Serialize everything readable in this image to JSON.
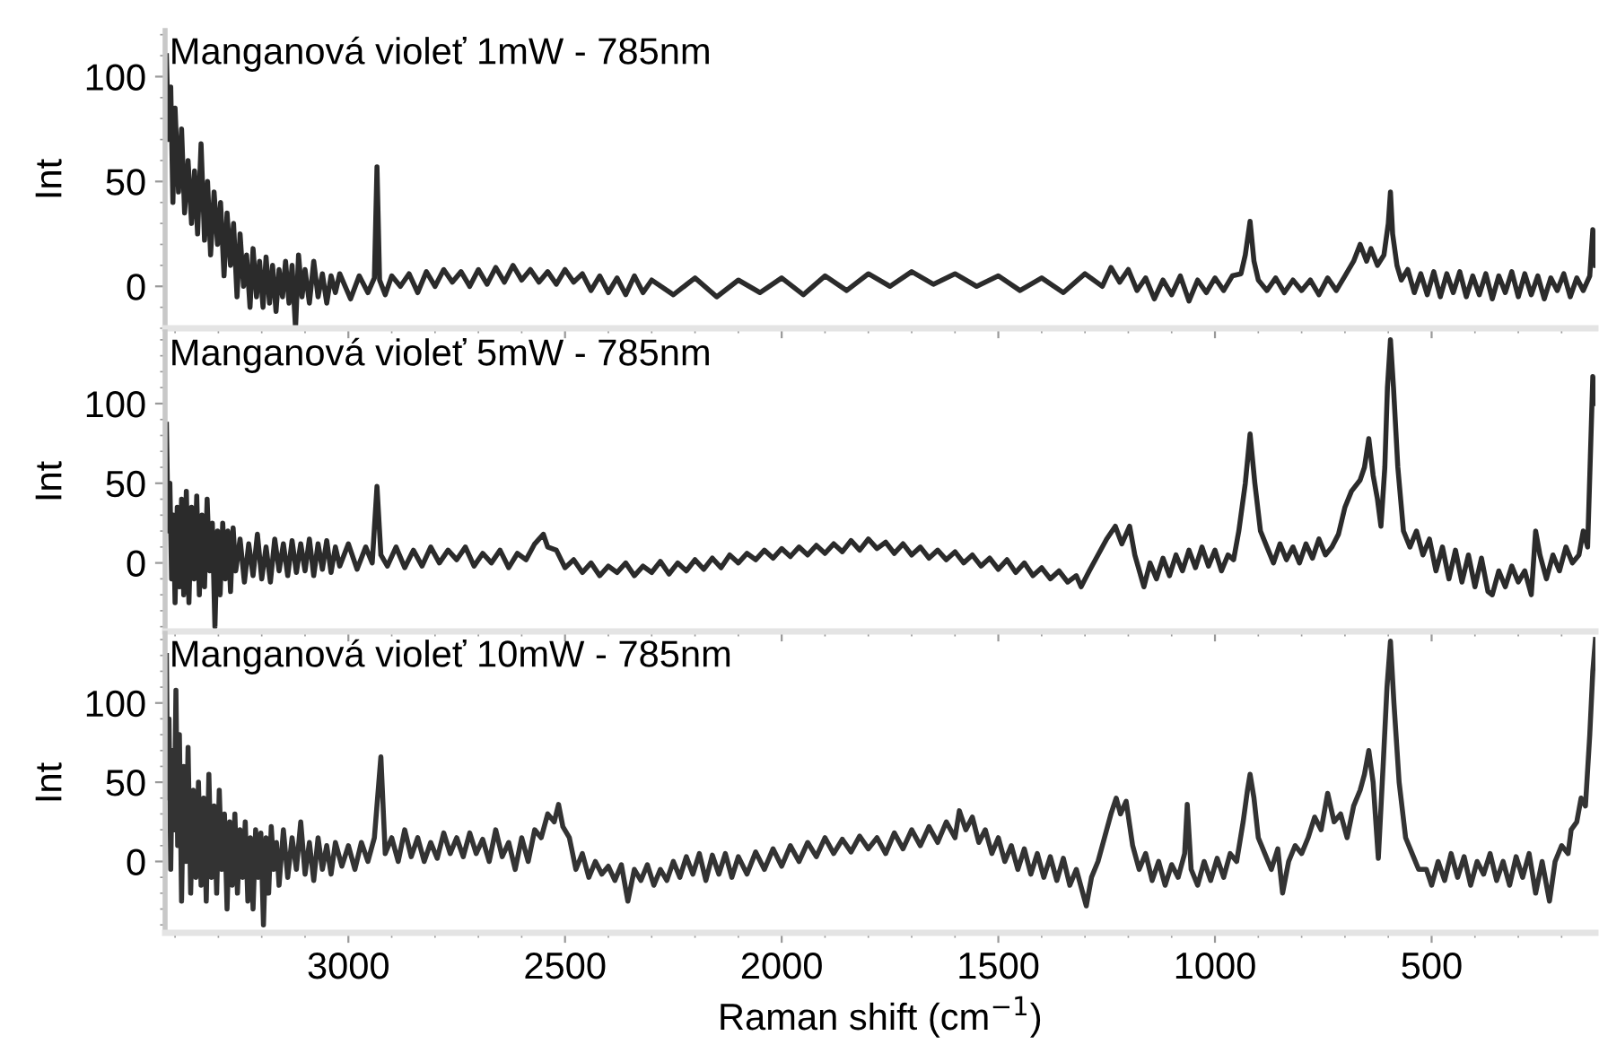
{
  "chart_data": [
    {
      "type": "line",
      "title": "Manganová violeť 1mW - 785nm",
      "ylabel": "Int",
      "xlim": [
        3423,
        122
      ],
      "ylim": [
        -20,
        122
      ],
      "xticks": [
        3000,
        2500,
        2000,
        1500,
        1000,
        500
      ],
      "yticks": [
        0,
        50,
        100
      ],
      "tick_labels": "y",
      "grid": false,
      "series": [
        {
          "color": "#2b2b2b",
          "x": [
            3420,
            3415,
            3410,
            3405,
            3400,
            3392,
            3385,
            3378,
            3370,
            3362,
            3355,
            3348,
            3340,
            3332,
            3325,
            3318,
            3310,
            3302,
            3295,
            3287,
            3280,
            3272,
            3265,
            3257,
            3250,
            3242,
            3235,
            3227,
            3220,
            3212,
            3205,
            3197,
            3190,
            3182,
            3175,
            3167,
            3160,
            3152,
            3145,
            3137,
            3130,
            3122,
            3115,
            3107,
            3100,
            3090,
            3080,
            3070,
            3060,
            3050,
            3040,
            3030,
            3020,
            2995,
            2975,
            2955,
            2940,
            2934,
            2928,
            2915,
            2900,
            2880,
            2860,
            2840,
            2820,
            2800,
            2780,
            2760,
            2740,
            2720,
            2700,
            2680,
            2660,
            2640,
            2620,
            2600,
            2580,
            2560,
            2540,
            2520,
            2500,
            2480,
            2460,
            2440,
            2420,
            2400,
            2380,
            2360,
            2340,
            2320,
            2300,
            2250,
            2200,
            2150,
            2100,
            2050,
            2000,
            1950,
            1900,
            1850,
            1800,
            1750,
            1700,
            1650,
            1600,
            1550,
            1500,
            1450,
            1400,
            1350,
            1300,
            1260,
            1240,
            1220,
            1200,
            1180,
            1160,
            1140,
            1120,
            1100,
            1080,
            1060,
            1040,
            1020,
            1000,
            980,
            960,
            940,
            930,
            919,
            910,
            900,
            880,
            860,
            840,
            820,
            800,
            780,
            760,
            740,
            720,
            700,
            680,
            665,
            650,
            640,
            625,
            610,
            600,
            595,
            590,
            580,
            570,
            555,
            540,
            525,
            510,
            495,
            480,
            465,
            450,
            435,
            420,
            405,
            390,
            375,
            360,
            345,
            330,
            315,
            300,
            285,
            270,
            255,
            240,
            225,
            210,
            195,
            180,
            165,
            150,
            135,
            128,
            122
          ],
          "values": [
            110,
            70,
            95,
            40,
            85,
            45,
            75,
            35,
            60,
            30,
            55,
            25,
            68,
            22,
            50,
            15,
            45,
            20,
            40,
            5,
            35,
            10,
            30,
            -5,
            25,
            0,
            15,
            -10,
            18,
            -5,
            12,
            -10,
            14,
            -8,
            10,
            -12,
            8,
            -5,
            12,
            -8,
            10,
            -20,
            15,
            -5,
            8,
            -8,
            12,
            -5,
            6,
            -8,
            5,
            -3,
            6,
            -6,
            5,
            -3,
            4,
            57,
            3,
            -4,
            5,
            0,
            6,
            -3,
            7,
            0,
            8,
            2,
            7,
            0,
            8,
            1,
            9,
            2,
            10,
            3,
            8,
            2,
            7,
            1,
            8,
            2,
            6,
            -2,
            5,
            -3,
            4,
            -4,
            5,
            -3,
            3,
            -4,
            4,
            -5,
            3,
            -3,
            4,
            -4,
            5,
            -2,
            6,
            0,
            7,
            1,
            6,
            0,
            5,
            -2,
            4,
            -3,
            6,
            0,
            9,
            2,
            8,
            -2,
            4,
            -6,
            3,
            -4,
            5,
            -7,
            3,
            -3,
            4,
            -2,
            5,
            6,
            15,
            31,
            12,
            3,
            -2,
            4,
            -3,
            3,
            -2,
            3,
            -4,
            4,
            -2,
            5,
            12,
            20,
            12,
            18,
            10,
            15,
            30,
            45,
            25,
            10,
            3,
            8,
            -3,
            6,
            -4,
            7,
            -5,
            6,
            -3,
            7,
            -5,
            5,
            -4,
            6,
            -6,
            5,
            -3,
            7,
            -5,
            6,
            -4,
            5,
            -6,
            4,
            -2,
            6,
            -5,
            4,
            -2,
            5,
            27,
            10
          ]
        }
      ]
    },
    {
      "type": "line",
      "title": "Manganová violeť 5mW - 785nm",
      "ylabel": "Int",
      "xlim": [
        3423,
        122
      ],
      "ylim": [
        -43,
        145
      ],
      "xticks": [
        3000,
        2500,
        2000,
        1500,
        1000,
        500
      ],
      "yticks": [
        0,
        50,
        100
      ],
      "tick_labels": "y",
      "grid": false,
      "series": [
        {
          "color": "#2b2b2b",
          "x": [
            3420,
            3416,
            3412,
            3408,
            3404,
            3400,
            3395,
            3390,
            3385,
            3380,
            3374,
            3368,
            3362,
            3356,
            3350,
            3344,
            3338,
            3332,
            3326,
            3320,
            3314,
            3308,
            3302,
            3296,
            3290,
            3284,
            3278,
            3272,
            3266,
            3260,
            3250,
            3240,
            3230,
            3220,
            3210,
            3200,
            3190,
            3180,
            3170,
            3160,
            3150,
            3140,
            3130,
            3120,
            3110,
            3100,
            3090,
            3080,
            3070,
            3060,
            3050,
            3040,
            3030,
            3020,
            3000,
            2980,
            2960,
            2945,
            2934,
            2925,
            2910,
            2890,
            2870,
            2850,
            2830,
            2810,
            2790,
            2770,
            2750,
            2730,
            2710,
            2690,
            2670,
            2650,
            2630,
            2610,
            2590,
            2570,
            2550,
            2540,
            2520,
            2500,
            2480,
            2460,
            2440,
            2420,
            2400,
            2380,
            2360,
            2340,
            2320,
            2300,
            2280,
            2260,
            2240,
            2220,
            2200,
            2180,
            2160,
            2140,
            2120,
            2100,
            2080,
            2060,
            2040,
            2020,
            2000,
            1980,
            1960,
            1940,
            1920,
            1900,
            1880,
            1860,
            1840,
            1820,
            1800,
            1780,
            1760,
            1740,
            1720,
            1700,
            1680,
            1660,
            1640,
            1620,
            1600,
            1580,
            1560,
            1540,
            1520,
            1500,
            1480,
            1460,
            1440,
            1420,
            1400,
            1380,
            1360,
            1340,
            1320,
            1309,
            1290,
            1270,
            1250,
            1230,
            1215,
            1197,
            1185,
            1164,
            1150,
            1135,
            1120,
            1105,
            1090,
            1075,
            1060,
            1045,
            1030,
            1015,
            1000,
            985,
            970,
            957,
            945,
            930,
            919,
            908,
            895,
            880,
            865,
            850,
            835,
            820,
            805,
            790,
            775,
            760,
            745,
            730,
            715,
            700,
            685,
            665,
            655,
            645,
            635,
            625,
            617,
            608,
            602,
            595,
            588,
            578,
            565,
            550,
            535,
            520,
            505,
            490,
            475,
            460,
            445,
            430,
            415,
            400,
            385,
            370,
            360,
            345,
            330,
            315,
            300,
            285,
            270,
            260,
            250,
            235,
            220,
            205,
            190,
            175,
            160,
            150,
            140,
            128,
            122
          ],
          "values": [
            87,
            20,
            50,
            -10,
            30,
            -25,
            35,
            -15,
            40,
            -20,
            45,
            -25,
            35,
            -10,
            42,
            -20,
            30,
            -15,
            40,
            -5,
            25,
            -40,
            20,
            -20,
            25,
            -10,
            20,
            -18,
            22,
            -5,
            15,
            -12,
            12,
            -8,
            18,
            -10,
            10,
            -12,
            15,
            -5,
            12,
            -8,
            14,
            -6,
            12,
            -5,
            15,
            -8,
            12,
            -4,
            14,
            -6,
            10,
            -2,
            12,
            -4,
            10,
            0,
            48,
            5,
            -2,
            10,
            -3,
            8,
            -2,
            10,
            0,
            8,
            2,
            10,
            -2,
            6,
            0,
            8,
            -3,
            6,
            2,
            12,
            18,
            10,
            8,
            -3,
            2,
            -6,
            0,
            -8,
            -2,
            -6,
            0,
            -8,
            -2,
            -6,
            1,
            -7,
            0,
            -5,
            2,
            -4,
            3,
            -3,
            5,
            0,
            6,
            2,
            8,
            3,
            9,
            4,
            10,
            5,
            11,
            6,
            12,
            7,
            14,
            8,
            15,
            9,
            13,
            6,
            12,
            5,
            10,
            3,
            8,
            2,
            7,
            0,
            5,
            -2,
            3,
            -4,
            2,
            -6,
            0,
            -8,
            -3,
            -10,
            -5,
            -12,
            -8,
            -15,
            -5,
            5,
            15,
            23,
            12,
            23,
            5,
            -15,
            0,
            -10,
            3,
            -8,
            5,
            -5,
            8,
            -3,
            10,
            -2,
            8,
            -5,
            5,
            2,
            20,
            50,
            81,
            50,
            20,
            10,
            0,
            12,
            2,
            10,
            0,
            12,
            3,
            15,
            5,
            10,
            18,
            35,
            45,
            52,
            60,
            78,
            55,
            40,
            23,
            60,
            110,
            140,
            110,
            60,
            20,
            10,
            20,
            5,
            15,
            -5,
            10,
            -10,
            8,
            -12,
            5,
            -15,
            3,
            -18,
            -20,
            -5,
            -15,
            -2,
            -12,
            -5,
            -20,
            20,
            5,
            -10,
            5,
            -5,
            10,
            0,
            5,
            20,
            10,
            117,
            100
          ]
        }
      ]
    },
    {
      "type": "line",
      "title": "Manganová violeť 10mW - 785nm",
      "ylabel": "Int",
      "xlabel": "Raman shift (cm$^{−1}$)",
      "xlim": [
        3423,
        122
      ],
      "ylim": [
        -45,
        144
      ],
      "xticks": [
        3000,
        2500,
        2000,
        1500,
        1000,
        500
      ],
      "yticks": [
        0,
        50,
        100
      ],
      "grid": false,
      "series": [
        {
          "color": "#333333",
          "x": [
            3420,
            3417,
            3414,
            3410,
            3406,
            3402,
            3398,
            3394,
            3390,
            3385,
            3380,
            3375,
            3370,
            3364,
            3358,
            3352,
            3346,
            3340,
            3334,
            3328,
            3322,
            3316,
            3310,
            3304,
            3298,
            3292,
            3286,
            3280,
            3274,
            3268,
            3262,
            3256,
            3250,
            3244,
            3238,
            3232,
            3226,
            3220,
            3214,
            3208,
            3202,
            3196,
            3190,
            3184,
            3178,
            3172,
            3166,
            3160,
            3150,
            3140,
            3130,
            3120,
            3110,
            3100,
            3090,
            3080,
            3070,
            3060,
            3050,
            3040,
            3030,
            3015,
            3000,
            2985,
            2970,
            2955,
            2940,
            2925,
            2915,
            2900,
            2885,
            2870,
            2855,
            2840,
            2825,
            2810,
            2795,
            2780,
            2765,
            2750,
            2735,
            2720,
            2705,
            2690,
            2675,
            2660,
            2645,
            2630,
            2615,
            2600,
            2585,
            2570,
            2555,
            2540,
            2525,
            2515,
            2505,
            2490,
            2475,
            2460,
            2445,
            2430,
            2415,
            2400,
            2385,
            2370,
            2355,
            2340,
            2325,
            2310,
            2295,
            2280,
            2265,
            2250,
            2235,
            2220,
            2205,
            2190,
            2175,
            2160,
            2145,
            2130,
            2115,
            2100,
            2080,
            2060,
            2040,
            2020,
            2000,
            1980,
            1960,
            1940,
            1920,
            1900,
            1880,
            1860,
            1840,
            1820,
            1800,
            1780,
            1760,
            1740,
            1720,
            1700,
            1680,
            1660,
            1640,
            1620,
            1600,
            1590,
            1575,
            1560,
            1545,
            1530,
            1515,
            1500,
            1485,
            1470,
            1455,
            1440,
            1425,
            1410,
            1395,
            1380,
            1365,
            1350,
            1335,
            1320,
            1297,
            1285,
            1270,
            1255,
            1240,
            1228,
            1218,
            1205,
            1190,
            1175,
            1160,
            1145,
            1130,
            1115,
            1100,
            1085,
            1070,
            1064,
            1055,
            1040,
            1025,
            1010,
            995,
            980,
            965,
            950,
            935,
            925,
            919,
            910,
            900,
            885,
            870,
            855,
            844,
            830,
            815,
            800,
            785,
            770,
            755,
            740,
            725,
            710,
            695,
            680,
            665,
            655,
            645,
            635,
            623,
            612,
            603,
            595,
            587,
            575,
            560,
            545,
            530,
            512,
            500,
            485,
            470,
            455,
            440,
            425,
            410,
            395,
            380,
            365,
            350,
            335,
            320,
            305,
            290,
            275,
            260,
            245,
            228,
            215,
            200,
            185,
            178,
            165,
            155,
            145,
            135,
            128,
            122
          ],
          "values": [
            130,
            40,
            90,
            -5,
            70,
            20,
            108,
            10,
            80,
            -25,
            60,
            0,
            72,
            -20,
            45,
            -10,
            50,
            -15,
            40,
            -25,
            55,
            -10,
            35,
            -20,
            45,
            -5,
            30,
            -30,
            25,
            -15,
            30,
            -20,
            20,
            -10,
            25,
            -25,
            15,
            -30,
            20,
            -10,
            18,
            -40,
            15,
            -20,
            22,
            -5,
            12,
            -15,
            20,
            -10,
            15,
            -5,
            25,
            -8,
            12,
            -12,
            15,
            -5,
            10,
            -8,
            12,
            -3,
            10,
            -5,
            12,
            0,
            15,
            66,
            5,
            15,
            0,
            20,
            3,
            15,
            0,
            12,
            2,
            18,
            5,
            15,
            3,
            18,
            5,
            14,
            0,
            20,
            3,
            12,
            -5,
            15,
            0,
            20,
            15,
            30,
            25,
            36,
            22,
            15,
            -5,
            5,
            -10,
            0,
            -8,
            -3,
            -12,
            -2,
            -25,
            -5,
            -12,
            -2,
            -15,
            -5,
            -12,
            0,
            -10,
            3,
            -8,
            5,
            -12,
            4,
            -8,
            5,
            -10,
            3,
            -8,
            6,
            -5,
            8,
            -3,
            10,
            0,
            12,
            3,
            15,
            5,
            14,
            6,
            16,
            8,
            15,
            5,
            18,
            8,
            20,
            10,
            22,
            12,
            25,
            15,
            32,
            20,
            28,
            12,
            20,
            5,
            15,
            0,
            10,
            -5,
            8,
            -8,
            5,
            -10,
            3,
            -12,
            2,
            -15,
            -5,
            -28,
            -10,
            0,
            15,
            30,
            40,
            30,
            38,
            10,
            -5,
            5,
            -12,
            0,
            -15,
            -2,
            -10,
            5,
            36,
            -5,
            -15,
            0,
            -12,
            2,
            -10,
            5,
            0,
            25,
            45,
            55,
            40,
            15,
            5,
            -5,
            8,
            -20,
            0,
            10,
            5,
            15,
            28,
            20,
            43,
            25,
            30,
            15,
            35,
            45,
            55,
            70,
            50,
            2,
            60,
            110,
            139,
            100,
            50,
            15,
            5,
            -5,
            -5,
            -15,
            0,
            -12,
            5,
            -10,
            3,
            -15,
            0,
            -8,
            5,
            -12,
            0,
            -15,
            3,
            -10,
            5,
            -20,
            0,
            -25,
            0,
            10,
            5,
            20,
            25,
            40,
            35,
            80,
            120,
            140
          ]
        }
      ]
    }
  ]
}
